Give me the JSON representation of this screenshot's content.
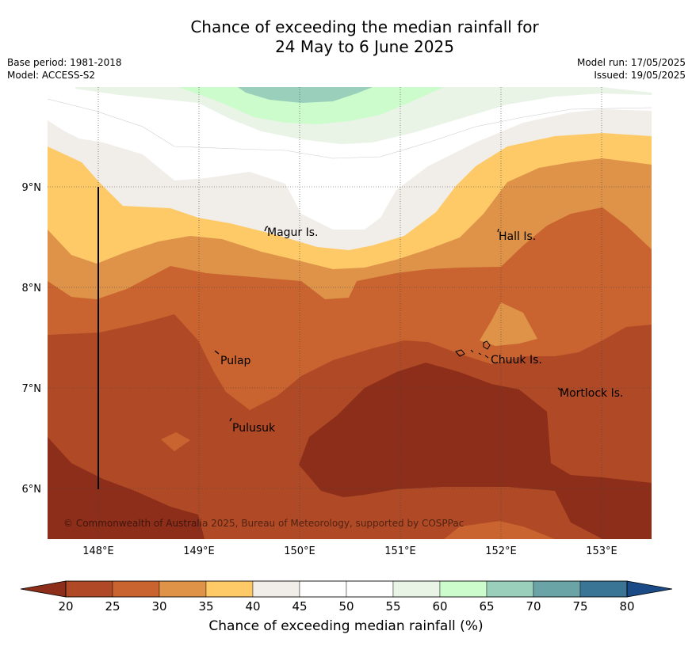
{
  "header": {
    "title_line1": "Chance of exceeding the median rainfall for",
    "title_line2": "24 May to 6 June 2025",
    "base_period": "Base period: 1981-2018",
    "model": "Model: ACCESS-S2",
    "model_run": "Model run: 17/05/2025",
    "issued": "Issued: 19/05/2025"
  },
  "map": {
    "lon_ticks": [
      "148°E",
      "149°E",
      "150°E",
      "151°E",
      "152°E",
      "153°E"
    ],
    "lat_ticks": [
      "9°N",
      "8°N",
      "7°N",
      "6°N"
    ],
    "places": {
      "magur": "Magur Is.",
      "hall": "Hall Is.",
      "pulap": "Pulap",
      "chuuk": "Chuuk Is.",
      "mortlock": "Mortlock Is.",
      "pulusuk": "Pulusuk"
    },
    "copyright": "© Commonwealth of Australia 2025, Bureau of Meteorology, supported by COSPPac"
  },
  "colorbar": {
    "ticks": [
      "20",
      "25",
      "30",
      "35",
      "40",
      "45",
      "50",
      "55",
      "60",
      "65",
      "70",
      "75",
      "80"
    ],
    "colors": {
      "below20": "#8c2e1a",
      "c20_25": "#b04a26",
      "c25_30": "#c96431",
      "c30_35": "#df9349",
      "c35_40": "#fdca67",
      "c40_45": "#f1ede8",
      "c45_50": "#ffffff",
      "c50_55": "#ffffff",
      "c55_60": "#e9f4e7",
      "c60_65": "#ccfccb",
      "c65_70": "#9ad0bb",
      "c70_75": "#6ba4a7",
      "c75_80": "#3b7595",
      "above80": "#1a4b86"
    },
    "label": "Chance of exceeding median rainfall (%)"
  }
}
